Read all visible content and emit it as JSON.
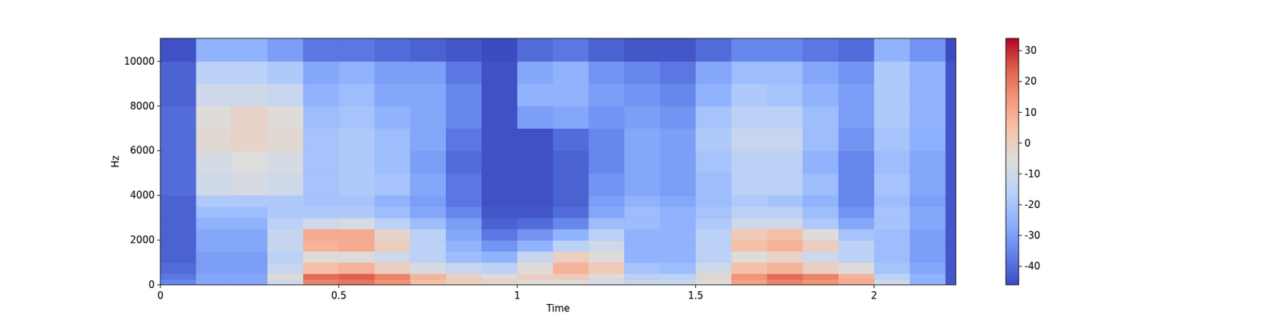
{
  "chart_data": {
    "type": "heatmap",
    "x_label": "Time",
    "y_label": "Hz",
    "xlim": [
      0,
      2.229
    ],
    "ylim": [
      0,
      11025
    ],
    "xticks": [
      0,
      0.5,
      1,
      1.5,
      2
    ],
    "yticks": [
      0,
      2000,
      4000,
      6000,
      8000,
      10000
    ],
    "x_edges": [
      0,
      0.1,
      0.2,
      0.3,
      0.4,
      0.5,
      0.6,
      0.7,
      0.8,
      0.9,
      1.0,
      1.1,
      1.2,
      1.3,
      1.4,
      1.5,
      1.6,
      1.7,
      1.8,
      1.9,
      2.0,
      2.1,
      2.2,
      2.229
    ],
    "y_edges": [
      0,
      250,
      500,
      1000,
      1500,
      2000,
      2500,
      3000,
      3500,
      4000,
      5000,
      6000,
      7000,
      8000,
      9000,
      10000,
      11025
    ],
    "cells": [
      [
        -35,
        -28,
        -28,
        -10,
        18,
        20,
        15,
        5,
        0,
        -2,
        -5,
        -5,
        -8,
        -12,
        -12,
        -5,
        12,
        18,
        15,
        10,
        -10,
        -25,
        -44
      ],
      [
        -38,
        -28,
        -28,
        -5,
        22,
        24,
        18,
        8,
        0,
        -5,
        0,
        2,
        -5,
        -15,
        -15,
        -3,
        15,
        22,
        18,
        8,
        -15,
        -25,
        -44
      ],
      [
        -40,
        -30,
        -30,
        -12,
        5,
        8,
        0,
        -8,
        -12,
        -15,
        -5,
        8,
        2,
        -20,
        -22,
        -10,
        5,
        8,
        0,
        -5,
        -20,
        -28,
        -44
      ],
      [
        -42,
        -30,
        -30,
        -15,
        -5,
        -5,
        -10,
        -15,
        -22,
        -25,
        -12,
        0,
        -5,
        -25,
        -25,
        -15,
        -5,
        -2,
        -10,
        -15,
        -22,
        -30,
        -44
      ],
      [
        -42,
        -28,
        -28,
        -12,
        8,
        10,
        0,
        -15,
        -25,
        -32,
        -25,
        -15,
        -10,
        -25,
        -25,
        -15,
        5,
        8,
        0,
        -15,
        -22,
        -30,
        -44
      ],
      [
        -42,
        -28,
        -28,
        -12,
        10,
        10,
        -2,
        -15,
        -28,
        -38,
        -32,
        -25,
        -15,
        -25,
        -25,
        -15,
        2,
        5,
        -5,
        -20,
        -22,
        -30,
        -44
      ],
      [
        -42,
        -25,
        -25,
        -15,
        -10,
        -8,
        -15,
        -22,
        -30,
        -42,
        -40,
        -35,
        -22,
        -22,
        -25,
        -18,
        -10,
        -10,
        -18,
        -28,
        -20,
        -28,
        -44
      ],
      [
        -42,
        -22,
        -22,
        -18,
        -18,
        -18,
        -22,
        -28,
        -35,
        -44,
        -44,
        -40,
        -28,
        -22,
        -25,
        -20,
        -15,
        -15,
        -22,
        -32,
        -20,
        -28,
        -44
      ],
      [
        -42,
        -18,
        -18,
        -18,
        -20,
        -20,
        -25,
        -30,
        -38,
        -45,
        -45,
        -42,
        -30,
        -25,
        -28,
        -22,
        -18,
        -20,
        -25,
        -35,
        -22,
        -30,
        -44
      ],
      [
        -40,
        -10,
        -8,
        -10,
        -20,
        -18,
        -20,
        -28,
        -38,
        -45,
        -45,
        -42,
        -32,
        -28,
        -30,
        -22,
        -15,
        -15,
        -22,
        -35,
        -20,
        -28,
        -44
      ],
      [
        -40,
        -8,
        -6,
        -8,
        -20,
        -18,
        -22,
        -30,
        -40,
        -45,
        -45,
        -42,
        -35,
        -28,
        -30,
        -20,
        -15,
        -15,
        -25,
        -35,
        -22,
        -28,
        -44
      ],
      [
        -40,
        -4,
        -2,
        -4,
        -20,
        -18,
        -22,
        -28,
        -38,
        -45,
        -45,
        -40,
        -35,
        -28,
        -30,
        -18,
        -12,
        -12,
        -22,
        -32,
        -20,
        -26,
        -44
      ],
      [
        -40,
        -5,
        -2,
        -5,
        -22,
        -20,
        -25,
        -28,
        -35,
        -45,
        -30,
        -28,
        -32,
        -30,
        -32,
        -20,
        -15,
        -15,
        -22,
        -30,
        -18,
        -25,
        -44
      ],
      [
        -42,
        -10,
        -10,
        -12,
        -25,
        -22,
        -28,
        -28,
        -35,
        -45,
        -25,
        -25,
        -30,
        -32,
        -35,
        -25,
        -18,
        -20,
        -25,
        -30,
        -18,
        -25,
        -44
      ],
      [
        -42,
        -15,
        -15,
        -18,
        -28,
        -25,
        -30,
        -30,
        -38,
        -45,
        -28,
        -25,
        -32,
        -35,
        -38,
        -28,
        -22,
        -22,
        -28,
        -32,
        -18,
        -25,
        -44
      ],
      [
        -45,
        -25,
        -25,
        -30,
        -38,
        -38,
        -40,
        -42,
        -44,
        -46,
        -40,
        -38,
        -42,
        -44,
        -44,
        -40,
        -35,
        -35,
        -38,
        -40,
        -25,
        -32,
        -46
      ]
    ],
    "colorbar": {
      "range": [
        -46,
        34
      ],
      "ticks": [
        -40,
        -30,
        -20,
        -10,
        0,
        10,
        20,
        30
      ]
    }
  }
}
